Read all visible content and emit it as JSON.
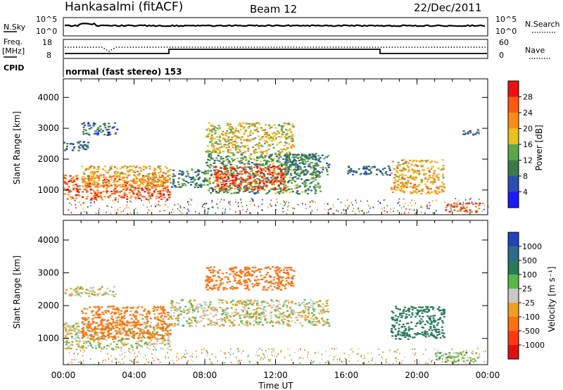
{
  "header": {
    "station": "Hankasalmi (fitACF)",
    "beam": "Beam 12",
    "date": "22/Dec/2011"
  },
  "cpid_text": "normal (fast stereo) 153",
  "side_labels": {
    "nsky": "N.Sky",
    "nsearch": "N.Search",
    "freq": "Freq.",
    "freq_unit": "[MHz]",
    "nave": "Nave",
    "cpid": "CPID"
  },
  "strip_ticks": {
    "nsky_left": [
      "10^5",
      "10^0"
    ],
    "nsky_right": [
      "10^5",
      "10^0"
    ],
    "freq_left": [
      "18",
      "8"
    ],
    "nave_right": [
      "60",
      "0"
    ]
  },
  "x_axis": {
    "label": "Time UT",
    "ticks": [
      "00:00",
      "04:00",
      "08:00",
      "12:00",
      "16:00",
      "20:00",
      "00:00"
    ]
  },
  "y_axis": {
    "label": "Slant Range [km]",
    "ticks": [
      "1000",
      "2000",
      "3000",
      "4000"
    ]
  },
  "power_colorbar": {
    "label": "Power [dB]",
    "ticks": [
      "4",
      "8",
      "12",
      "16",
      "20",
      "24",
      "28"
    ],
    "colors": [
      "#1a1aff",
      "#2a4fb0",
      "#3a7a4a",
      "#5aa84a",
      "#e8c020",
      "#ff8c1a",
      "#ff5a10",
      "#ee1010"
    ]
  },
  "velocity_colorbar": {
    "label": "Velocity [m s⁻¹]",
    "ticks": [
      "1000",
      "500",
      "100",
      "25",
      "-25",
      "-100",
      "-500",
      "-1000"
    ],
    "colors": [
      "#2244bb",
      "#2e6b8a",
      "#2a7a5a",
      "#5ab84a",
      "#c8c8c8",
      "#f0a020",
      "#ff7010",
      "#ff3a10",
      "#e01010"
    ]
  },
  "chart_data": [
    {
      "type": "heatmap",
      "title": "",
      "xlabel": "Time UT",
      "ylabel": "Slant Range [km]",
      "xlim": [
        0,
        24
      ],
      "ylim": [
        200,
        4600
      ],
      "colorbar": "Power [dB]",
      "regions": [
        {
          "t": [
            0.0,
            6.0
          ],
          "r": [
            700,
            1500
          ],
          "value": 26
        },
        {
          "t": [
            1.0,
            6.0
          ],
          "r": [
            1100,
            1800
          ],
          "value": 20
        },
        {
          "t": [
            0.0,
            1.5
          ],
          "r": [
            2300,
            2600
          ],
          "value": 8
        },
        {
          "t": [
            1.0,
            3.0
          ],
          "r": [
            2800,
            3200
          ],
          "value": 8
        },
        {
          "t": [
            6.0,
            8.0
          ],
          "r": [
            1100,
            1700
          ],
          "value": 10
        },
        {
          "t": [
            8.0,
            14.5
          ],
          "r": [
            900,
            2200
          ],
          "value": 12
        },
        {
          "t": [
            8.5,
            12.5
          ],
          "r": [
            1000,
            1800
          ],
          "value": 27
        },
        {
          "t": [
            8.0,
            13.0
          ],
          "r": [
            2200,
            3200
          ],
          "value": 18
        },
        {
          "t": [
            12.5,
            15.0
          ],
          "r": [
            1500,
            2200
          ],
          "value": 10
        },
        {
          "t": [
            16.0,
            18.5
          ],
          "r": [
            1500,
            1800
          ],
          "value": 8
        },
        {
          "t": [
            18.5,
            21.5
          ],
          "r": [
            900,
            2000
          ],
          "value": 20
        },
        {
          "t": [
            21.5,
            23.5
          ],
          "r": [
            300,
            600
          ],
          "value": 26
        },
        {
          "t": [
            22.5,
            23.5
          ],
          "r": [
            2800,
            3000
          ],
          "value": 8
        }
      ]
    },
    {
      "type": "heatmap",
      "title": "",
      "xlabel": "Time UT",
      "ylabel": "Slant Range [km]",
      "xlim": [
        0,
        24
      ],
      "ylim": [
        200,
        4600
      ],
      "colorbar": "Velocity [m s^-1]",
      "regions": [
        {
          "t": [
            0.0,
            6.0
          ],
          "r": [
            700,
            1500
          ],
          "value": 0
        },
        {
          "t": [
            1.0,
            6.0
          ],
          "r": [
            1000,
            2000
          ],
          "value": -150
        },
        {
          "t": [
            0.0,
            3.0
          ],
          "r": [
            2300,
            2600
          ],
          "value": 0
        },
        {
          "t": [
            6.0,
            15.0
          ],
          "r": [
            1400,
            2200
          ],
          "value": 0
        },
        {
          "t": [
            8.0,
            13.0
          ],
          "r": [
            2500,
            3200
          ],
          "value": -300
        },
        {
          "t": [
            18.5,
            21.5
          ],
          "r": [
            1000,
            2000
          ],
          "value": 200
        },
        {
          "t": [
            21.0,
            23.5
          ],
          "r": [
            300,
            600
          ],
          "value": 50
        }
      ]
    }
  ]
}
